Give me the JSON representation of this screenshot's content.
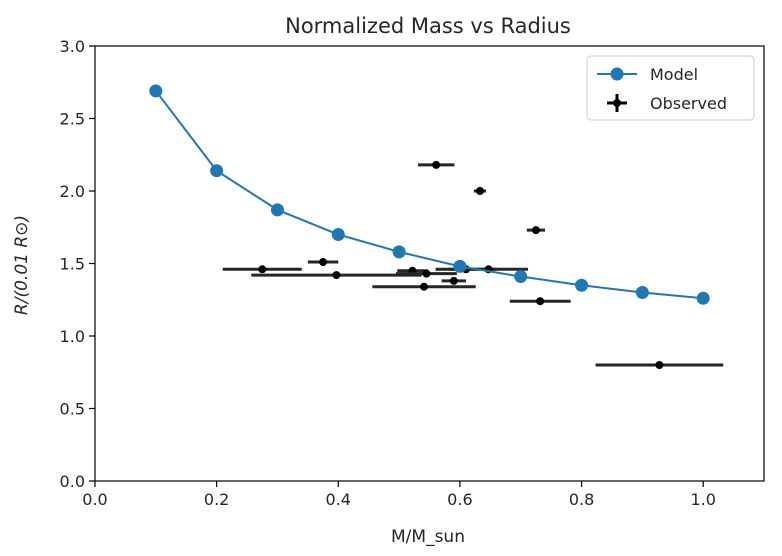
{
  "chart_data": {
    "type": "scatter",
    "title": "Normalized Mass vs Radius",
    "xlabel": "M/M_sun",
    "ylabel": "R/(0.01 R⊙)",
    "xlim": [
      0.0,
      1.1
    ],
    "ylim": [
      0.0,
      3.0
    ],
    "xticks": [
      "0.0",
      "0.2",
      "0.4",
      "0.6",
      "0.8",
      "1.0"
    ],
    "yticks": [
      "0.0",
      "0.5",
      "1.0",
      "1.5",
      "2.0",
      "2.5",
      "3.0"
    ],
    "grid": false,
    "legend_position": "top-right",
    "series": [
      {
        "name": "Model",
        "style": "line-with-markers",
        "color": "#1f77b4",
        "x": [
          0.1,
          0.2,
          0.3,
          0.4,
          0.5,
          0.6,
          0.7,
          0.8,
          0.9,
          1.0
        ],
        "y": [
          2.69,
          2.14,
          1.87,
          1.7,
          1.58,
          1.48,
          1.41,
          1.35,
          1.3,
          1.26
        ]
      },
      {
        "name": "Observed",
        "style": "errorbar-points",
        "color": "#000000",
        "points": [
          {
            "x": 0.275,
            "y": 1.46,
            "xerr": 0.065,
            "yerr": 0.0
          },
          {
            "x": 0.375,
            "y": 1.51,
            "xerr": 0.025,
            "yerr": 0.025
          },
          {
            "x": 0.397,
            "y": 1.42,
            "xerr": 0.14,
            "yerr": 0.0
          },
          {
            "x": 0.522,
            "y": 1.45,
            "xerr": 0.025,
            "yerr": 0.0
          },
          {
            "x": 0.541,
            "y": 1.34,
            "xerr": 0.085,
            "yerr": 0.0
          },
          {
            "x": 0.545,
            "y": 1.43,
            "xerr": 0.05,
            "yerr": 0.0
          },
          {
            "x": 0.561,
            "y": 2.18,
            "xerr": 0.03,
            "yerr": 0.02
          },
          {
            "x": 0.59,
            "y": 1.38,
            "xerr": 0.02,
            "yerr": 0.0
          },
          {
            "x": 0.61,
            "y": 1.46,
            "xerr": 0.05,
            "yerr": 0.0
          },
          {
            "x": 0.633,
            "y": 2.0,
            "xerr": 0.01,
            "yerr": 0.02
          },
          {
            "x": 0.647,
            "y": 1.46,
            "xerr": 0.065,
            "yerr": 0.0
          },
          {
            "x": 0.725,
            "y": 1.73,
            "xerr": 0.015,
            "yerr": 0.02
          },
          {
            "x": 0.732,
            "y": 1.24,
            "xerr": 0.05,
            "yerr": 0.0
          },
          {
            "x": 0.928,
            "y": 0.8,
            "xerr": 0.105,
            "yerr": 0.0
          }
        ]
      }
    ]
  }
}
